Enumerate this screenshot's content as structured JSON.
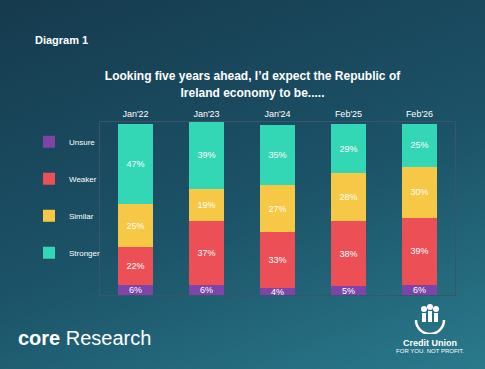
{
  "header": {
    "label": "Diagram 1"
  },
  "chart_data": {
    "type": "bar",
    "title": "Looking five years ahead, I’d expect the Republic of Ireland economy to be.....",
    "categories": [
      "Jan'22",
      "Jan'23",
      "Jan'24",
      "Feb'25",
      "Feb'26"
    ],
    "series": [
      {
        "name": "Unsure",
        "color": "#7e44a8",
        "values": [
          6,
          6,
          4,
          5,
          6
        ],
        "value_labels": [
          "6%",
          "6%",
          "4%",
          "5%",
          "6%"
        ]
      },
      {
        "name": "Weaker",
        "color": "#ec4f56",
        "values": [
          22,
          37,
          33,
          38,
          39
        ],
        "value_labels": [
          "22%",
          "37%",
          "33%",
          "38%",
          "39%"
        ]
      },
      {
        "name": "Similar",
        "color": "#f7c846",
        "values": [
          25,
          19,
          27,
          28,
          30
        ],
        "value_labels": [
          "25%",
          "19%",
          "27%",
          "28%",
          "30%"
        ]
      },
      {
        "name": "Stronger",
        "color": "#33d6b5",
        "values": [
          47,
          39,
          35,
          29,
          25
        ],
        "value_labels": [
          "47%",
          "39%",
          "35%",
          "29%",
          "25%"
        ]
      }
    ],
    "stacked": true,
    "data_labels": true,
    "legend": "left",
    "ylim": [
      0,
      101
    ],
    "tick_labels": "x",
    "grid": false
  },
  "footer": {
    "brand": "core",
    "brand_suffix": "Research",
    "logo_name": "Credit Union",
    "logo_tagline": "FOR YOU. NOT PROFIT."
  }
}
